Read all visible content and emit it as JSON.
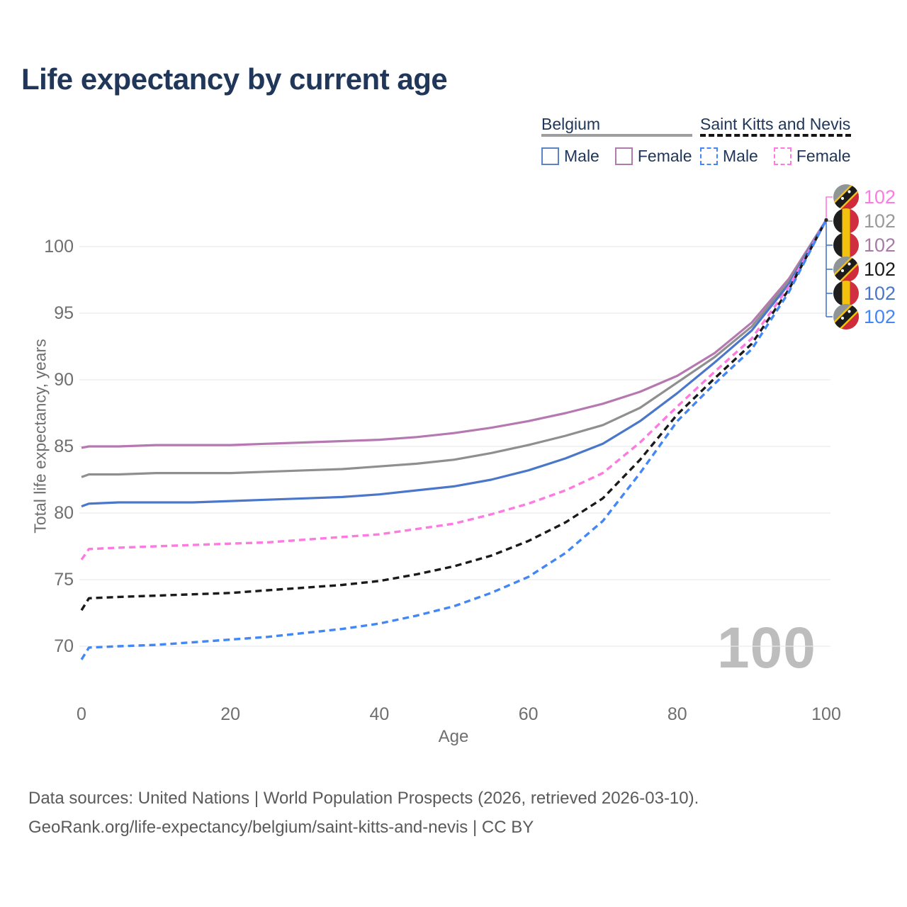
{
  "title": "Life expectancy by current age",
  "legend": {
    "groups": [
      {
        "label": "Belgium",
        "underline_style": "solid",
        "underline_color": "#9e9e9e",
        "items": [
          {
            "label": "Male",
            "box_color": "#5b84c4",
            "box_style": "solid"
          },
          {
            "label": "Female",
            "box_color": "#b07aad",
            "box_style": "solid"
          }
        ]
      },
      {
        "label": "Saint Kitts and Nevis",
        "underline_style": "dashed",
        "underline_color": "#141414",
        "items": [
          {
            "label": "Male",
            "box_color": "#4287f5",
            "box_style": "dashed"
          },
          {
            "label": "Female",
            "box_color": "#ff7ae0",
            "box_style": "dashed"
          }
        ]
      }
    ]
  },
  "watermark": "100",
  "footer": {
    "line1": "Data sources: United Nations | World Population Prospects (2026, retrieved 2026-03-10).",
    "line2": "GeoRank.org/life-expectancy/belgium/saint-kitts-and-nevis | CC BY"
  },
  "chart_data": {
    "type": "line",
    "title": "Life expectancy by current age",
    "xlabel": "Age",
    "ylabel": "Total life expectancy, years",
    "xlim": [
      0,
      100
    ],
    "ylim": [
      66.5,
      104
    ],
    "x_ticks": [
      0,
      20,
      40,
      60,
      80,
      100
    ],
    "y_ticks": [
      70,
      75,
      80,
      85,
      90,
      95,
      100
    ],
    "grid": "horizontal gridlines only",
    "gridline_color": "#e9e9e9",
    "legend_position": "top-right",
    "ages": [
      0,
      1,
      5,
      10,
      15,
      20,
      25,
      30,
      35,
      40,
      45,
      50,
      55,
      60,
      65,
      70,
      75,
      80,
      85,
      90,
      95,
      100
    ],
    "series": [
      {
        "name": "Belgium Female",
        "country": "Belgium",
        "sex": "Female",
        "line_style": "solid",
        "color": "#b678b0",
        "flag": "be",
        "values": [
          84.9,
          85.0,
          85.0,
          85.1,
          85.1,
          85.1,
          85.2,
          85.3,
          85.4,
          85.5,
          85.7,
          86.0,
          86.4,
          86.9,
          87.5,
          88.2,
          89.1,
          90.3,
          92.0,
          94.3,
          97.6,
          102
        ]
      },
      {
        "name": "Belgium Both sexes",
        "country": "Belgium",
        "sex": "Both",
        "line_style": "solid",
        "color": "#8f8f8f",
        "flag": "be",
        "values": [
          82.7,
          82.9,
          82.9,
          83.0,
          83.0,
          83.0,
          83.1,
          83.2,
          83.3,
          83.5,
          83.7,
          84.0,
          84.5,
          85.1,
          85.8,
          86.6,
          87.9,
          89.8,
          91.7,
          94.0,
          97.4,
          102
        ]
      },
      {
        "name": "Belgium Male",
        "country": "Belgium",
        "sex": "Male",
        "line_style": "solid",
        "color": "#4a77c9",
        "flag": "be",
        "values": [
          80.5,
          80.7,
          80.8,
          80.8,
          80.8,
          80.9,
          81.0,
          81.1,
          81.2,
          81.4,
          81.7,
          82.0,
          82.5,
          83.2,
          84.1,
          85.2,
          86.9,
          89.0,
          91.3,
          93.7,
          97.2,
          102
        ]
      },
      {
        "name": "Saint Kitts and Nevis Female",
        "country": "Saint Kitts and Nevis",
        "sex": "Female",
        "line_style": "dashed",
        "color": "#ff7ae0",
        "flag": "kn",
        "values": [
          76.5,
          77.3,
          77.4,
          77.5,
          77.6,
          77.7,
          77.8,
          78.0,
          78.2,
          78.4,
          78.8,
          79.2,
          79.9,
          80.7,
          81.7,
          83.0,
          85.3,
          88.0,
          90.6,
          93.1,
          97.0,
          102
        ]
      },
      {
        "name": "Saint Kitts and Nevis Both sexes",
        "country": "Saint Kitts and Nevis",
        "sex": "Both",
        "line_style": "dashed",
        "color": "#1a1a1a",
        "flag": "kn",
        "values": [
          72.7,
          73.6,
          73.7,
          73.8,
          73.9,
          74.0,
          74.2,
          74.4,
          74.6,
          74.9,
          75.4,
          76.0,
          76.8,
          77.9,
          79.3,
          81.1,
          84.0,
          87.4,
          90.1,
          92.7,
          96.8,
          102
        ]
      },
      {
        "name": "Saint Kitts and Nevis Male",
        "country": "Saint Kitts and Nevis",
        "sex": "Male",
        "line_style": "dashed",
        "color": "#4287f5",
        "flag": "kn",
        "values": [
          69.0,
          69.9,
          70.0,
          70.1,
          70.3,
          70.5,
          70.7,
          71.0,
          71.3,
          71.7,
          72.3,
          73.0,
          74.0,
          75.2,
          77.0,
          79.4,
          83.0,
          86.9,
          89.7,
          92.3,
          96.6,
          102
        ]
      }
    ],
    "end_labels_top_to_bottom": [
      {
        "flag": "kn",
        "series": "Saint Kitts and Nevis Female",
        "value": "102",
        "color": "#ff7ae0"
      },
      {
        "flag": "be",
        "series": "Belgium Both sexes",
        "value": "102",
        "color": "#9a9a9a"
      },
      {
        "flag": "be",
        "series": "Belgium Female",
        "value": "102",
        "color": "#a87ba7"
      },
      {
        "flag": "kn",
        "series": "Saint Kitts and Nevis Both sexes",
        "value": "102",
        "color": "#1a1a1a"
      },
      {
        "flag": "be",
        "series": "Belgium Male",
        "value": "102",
        "color": "#4a77c9"
      },
      {
        "flag": "kn",
        "series": "Saint Kitts and Nevis Male",
        "value": "102",
        "color": "#4287f5"
      }
    ],
    "flag_colors": {
      "be": {
        "black": "#1f1f1f",
        "yellow": "#f2c20f",
        "red": "#cf2f3e"
      },
      "kn": {
        "green_gray": "#8f9496",
        "yellow": "#f2c20f",
        "black": "#1c1c1c",
        "red": "#cf2b3b",
        "star": "#ffffff"
      }
    }
  }
}
